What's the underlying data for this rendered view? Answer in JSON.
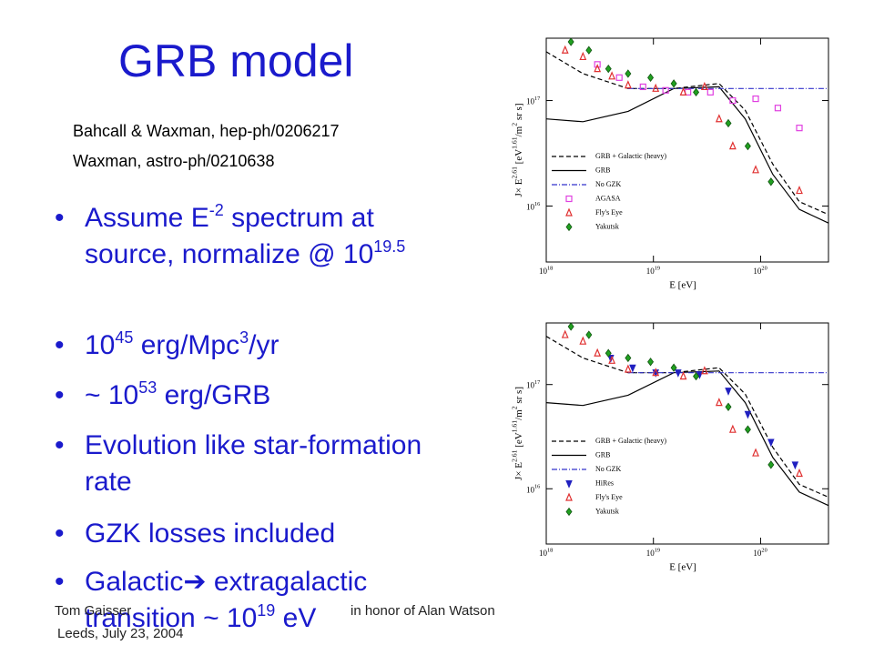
{
  "title": "GRB model",
  "references": [
    "Bahcall & Waxman, hep-ph/0206217",
    "Waxman, astro-ph/0210638"
  ],
  "bullets": [
    [
      "Assume E",
      "-2",
      " spectrum at source, normalize @ 10",
      "19.5"
    ],
    [
      "10",
      "45",
      " erg/Mpc",
      "3",
      "/yr"
    ],
    [
      "~ 10",
      "53",
      " erg/GRB"
    ],
    [
      "Evolution like star-formation rate"
    ],
    [
      "GZK losses included"
    ],
    [
      "Galactic➔ extragalactic transition ~ 10",
      "19",
      " eV"
    ]
  ],
  "footer": {
    "author": "Tom Gaisser",
    "venue": "Leeds, July 23, 2004",
    "dedication": "in honor of Alan Watson"
  },
  "chart_data": [
    {
      "type": "scatter",
      "log_x": true,
      "log_y": true,
      "xlim": [
        1e+18,
        4.3e+20
      ],
      "ylim": [
        2950000000000000.0,
        3.9e+17
      ],
      "xticks": [
        {
          "value": 1e+18,
          "label": "10",
          "exponent": "18"
        },
        {
          "value": 1e+19,
          "label": "10",
          "exponent": "19"
        },
        {
          "value": 1e+20,
          "label": "10",
          "exponent": "20"
        }
      ],
      "yticks": [
        {
          "value": 1e+16,
          "label": "10",
          "exponent": "16"
        },
        {
          "value": 1e+17,
          "label": "10",
          "exponent": "17"
        }
      ],
      "xlabel": "E [eV]",
      "ylabel": [
        "J× E",
        "2.61",
        " [eV",
        "1.61",
        "/m",
        "2",
        " sr s]"
      ],
      "series": [
        {
          "name": "GRB + Galactic (heavy)",
          "color": "#000000",
          "line": "dashed",
          "x": [
            1e+18,
            2.2e+18,
            5.8e+18,
            1.55e+19,
            4.1e+19,
            7.2e+19,
            1.3e+20,
            2.3e+20,
            4.3e+20
          ],
          "values": [
            2.9e+17,
            1.8e+17,
            1.3e+17,
            1.3e+17,
            1.45e+17,
            8.1e+16,
            2.5e+16,
            1.1e+16,
            8300000000000000.0
          ]
        },
        {
          "name": "GRB",
          "color": "#000000",
          "line": "solid",
          "x": [
            1e+18,
            2.2e+18,
            5.8e+18,
            1.55e+19,
            4.1e+19,
            7.2e+19,
            1.3e+20,
            2.3e+20,
            4.3e+20
          ],
          "values": [
            6.7e+16,
            6.3e+16,
            7.9e+16,
            1.3e+17,
            1.35e+17,
            6.7e+16,
            2e+16,
            9300000000000000.0,
            6900000000000000.0
          ]
        },
        {
          "name": "No GZK",
          "color": "#3333cc",
          "line": "dashdot",
          "x": [
            5.8e+18,
            4.3e+20
          ],
          "values": [
            1.3e+17,
            1.3e+17
          ]
        },
        {
          "name": "AGASA",
          "color": "#e040e0",
          "marker": "square",
          "x": [
            3e+18,
            4.8e+18,
            8e+18,
            1.3e+19,
            2.1e+19,
            3.4e+19,
            5.5e+19,
            9e+19,
            1.45e+20,
            2.3e+20
          ],
          "values": [
            2.2e+17,
            1.65e+17,
            1.35e+17,
            1.25e+17,
            1.2e+17,
            1.2e+17,
            1e+17,
            1.04e+17,
            8.5e+16,
            5.5e+16
          ]
        },
        {
          "name": "Fly's Eye",
          "color": "#e03030",
          "marker": "triangle-up",
          "x": [
            1.5e+18,
            2.2e+18,
            3e+18,
            4.1e+18,
            5.8e+18,
            1.05e+19,
            1.9e+19,
            3e+19,
            4.1e+19,
            5.5e+19,
            9e+19,
            2.3e+20
          ],
          "values": [
            3e+17,
            2.6e+17,
            2e+17,
            1.7e+17,
            1.4e+17,
            1.3e+17,
            1.2e+17,
            1.35e+17,
            6.7e+16,
            3.7e+16,
            2.2e+16,
            1.4e+16
          ]
        },
        {
          "name": "Yakutsk",
          "color": "#20a020",
          "marker": "diamond",
          "x": [
            1.7e+18,
            2.5e+18,
            3.8e+18,
            5.8e+18,
            9.4e+18,
            1.55e+19,
            2.5e+19,
            5e+19,
            7.6e+19,
            1.25e+20
          ],
          "values": [
            3.6e+17,
            3e+17,
            2e+17,
            1.8e+17,
            1.65e+17,
            1.45e+17,
            1.2e+17,
            6.1e+16,
            3.7e+16,
            1.7e+16
          ]
        }
      ]
    },
    {
      "type": "scatter",
      "log_x": true,
      "log_y": true,
      "xlim": [
        1e+18,
        4.3e+20
      ],
      "ylim": [
        2950000000000000.0,
        3.9e+17
      ],
      "xticks": [
        {
          "value": 1e+18,
          "label": "10",
          "exponent": "18"
        },
        {
          "value": 1e+19,
          "label": "10",
          "exponent": "19"
        },
        {
          "value": 1e+20,
          "label": "10",
          "exponent": "20"
        }
      ],
      "yticks": [
        {
          "value": 1e+16,
          "label": "10",
          "exponent": "16"
        },
        {
          "value": 1e+17,
          "label": "10",
          "exponent": "17"
        }
      ],
      "xlabel": "E [eV]",
      "ylabel": [
        "J× E",
        "2.61",
        " [eV",
        "1.61",
        "/m",
        "2",
        " sr s]"
      ],
      "series": [
        {
          "name": "GRB + Galactic (heavy)",
          "color": "#000000",
          "line": "dashed",
          "x": [
            1e+18,
            2.2e+18,
            5.8e+18,
            1.55e+19,
            4.1e+19,
            7.2e+19,
            1.3e+20,
            2.3e+20,
            4.3e+20
          ],
          "values": [
            2.9e+17,
            1.8e+17,
            1.3e+17,
            1.3e+17,
            1.45e+17,
            8.1e+16,
            2.5e+16,
            1.1e+16,
            8300000000000000.0
          ]
        },
        {
          "name": "GRB",
          "color": "#000000",
          "line": "solid",
          "x": [
            1e+18,
            2.2e+18,
            5.8e+18,
            1.55e+19,
            4.1e+19,
            7.2e+19,
            1.3e+20,
            2.3e+20,
            4.3e+20
          ],
          "values": [
            6.7e+16,
            6.3e+16,
            7.9e+16,
            1.3e+17,
            1.35e+17,
            6.7e+16,
            2e+16,
            9300000000000000.0,
            6900000000000000.0
          ]
        },
        {
          "name": "No GZK",
          "color": "#3333cc",
          "line": "dashdot",
          "x": [
            5.8e+18,
            4.3e+20
          ],
          "values": [
            1.3e+17,
            1.3e+17
          ]
        },
        {
          "name": "HiRes",
          "color": "#2020c0",
          "marker": "triangle-down",
          "x": [
            4e+18,
            6.4e+18,
            1.05e+19,
            1.7e+19,
            2.7e+19,
            5e+19,
            7.6e+19,
            1.25e+20,
            2.1e+20
          ],
          "values": [
            1.8e+17,
            1.45e+17,
            1.3e+17,
            1.3e+17,
            1.25e+17,
            8.7e+16,
            5.2e+16,
            2.8e+16,
            1.7e+16
          ]
        },
        {
          "name": "Fly's Eye",
          "color": "#e03030",
          "marker": "triangle-up",
          "x": [
            1.5e+18,
            2.2e+18,
            3e+18,
            4.1e+18,
            5.8e+18,
            1.05e+19,
            1.9e+19,
            3e+19,
            4.1e+19,
            5.5e+19,
            9e+19,
            2.3e+20
          ],
          "values": [
            3e+17,
            2.6e+17,
            2e+17,
            1.7e+17,
            1.4e+17,
            1.3e+17,
            1.2e+17,
            1.35e+17,
            6.7e+16,
            3.7e+16,
            2.2e+16,
            1.4e+16
          ]
        },
        {
          "name": "Yakutsk",
          "color": "#20a020",
          "marker": "diamond",
          "x": [
            1.7e+18,
            2.5e+18,
            3.8e+18,
            5.8e+18,
            9.4e+18,
            1.55e+19,
            2.5e+19,
            5e+19,
            7.6e+19,
            1.25e+20
          ],
          "values": [
            3.6e+17,
            3e+17,
            2e+17,
            1.8e+17,
            1.65e+17,
            1.45e+17,
            1.2e+17,
            6.1e+16,
            3.7e+16,
            1.7e+16
          ]
        }
      ]
    }
  ]
}
